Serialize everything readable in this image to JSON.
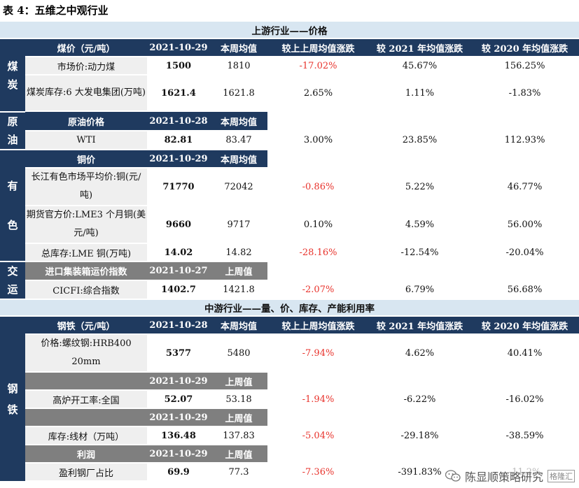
{
  "caption": "表 4：五维之中观行业",
  "colors": {
    "header": "#1f3a5f",
    "subheader": "#7f7f7f",
    "section": "#d8e6f1",
    "label": "#efefef",
    "negative": "#e8332c"
  },
  "upstream": {
    "section_title": "上游行业——价格",
    "coal": {
      "side": "煤炭",
      "header": [
        "煤价（元/吨）",
        "2021-10-29",
        "本周均值",
        "较上上周均值涨跌",
        "较 2021 年均值涨跌",
        "较 2020 年均值涨跌"
      ],
      "rows": [
        [
          "市场价:动力煤",
          "1500",
          "1810",
          "-17.02%",
          "45.67%",
          "156.25%"
        ],
        [
          "煤炭库存:6 大发电集团(万吨)",
          "1621.4",
          "1621.8",
          "2.65%",
          "1.11%",
          "-1.83%"
        ]
      ]
    },
    "oil": {
      "side": "原油",
      "header": [
        "原油价格",
        "2021-10-28",
        "本周均值"
      ],
      "rows": [
        [
          "WTI",
          "82.81",
          "83.47",
          "3.00%",
          "23.85%",
          "112.93%"
        ]
      ]
    },
    "metals": {
      "side": "有色",
      "header": [
        "铜价",
        "2021-10-29",
        "本周均值"
      ],
      "rows": [
        [
          "长江有色市场平均价:铜(元/吨)",
          "71770",
          "72042",
          "-0.86%",
          "5.22%",
          "46.77%"
        ],
        [
          "期货官方价:LME3 个月铜(美元/吨)",
          "9660",
          "9717",
          "0.10%",
          "4.59%",
          "56.00%"
        ],
        [
          "总库存:LME 铜(万吨)",
          "14.02",
          "14.82",
          "-28.16%",
          "-12.54%",
          "-20.04%"
        ]
      ]
    },
    "transport": {
      "side": "交运",
      "header": [
        "进口集装箱运价指数",
        "2021-10-27",
        "上周值"
      ],
      "rows": [
        [
          "CICFI:综合指数",
          "1402.7",
          "1421.8",
          "-2.07%",
          "6.79%",
          "56.68%"
        ]
      ]
    }
  },
  "midstream": {
    "section_title": "中游行业——量、价、库存、产能利用率",
    "steel": {
      "side": "钢铁",
      "header": [
        "钢铁（元/吨）",
        "2021-10-28",
        "本周均值",
        "较上上周均值涨跌",
        "较 2021 年均值涨跌",
        "较 2020 年均值涨跌"
      ],
      "row1": [
        "价格:螺纹钢:HRB400 20mm",
        "5377",
        "5480",
        "-7.94%",
        "4.62%",
        "40.41%"
      ],
      "sub2": [
        "2021-10-29",
        "上周值"
      ],
      "row2": [
        "高炉开工率:全国",
        "52.07",
        "53.18",
        "-1.94%",
        "-6.22%",
        "-16.02%"
      ],
      "sub3": [
        "2021-10-29",
        "上周值"
      ],
      "row3": [
        "库存:线材（万吨）",
        "136.48",
        "137.83",
        "-5.04%",
        "-29.18%",
        "-38.59%"
      ],
      "sub4": [
        "利润",
        "2021-10-29",
        "上周值"
      ],
      "row4": [
        "盈利钢厂占比",
        "69.9",
        "77.3",
        "-7.36%",
        "-391.83%",
        "-11.2%"
      ]
    }
  },
  "watermark": {
    "text": "陈显顺策略研究",
    "logo": "格隆汇",
    "icon": "wechat-icon"
  }
}
